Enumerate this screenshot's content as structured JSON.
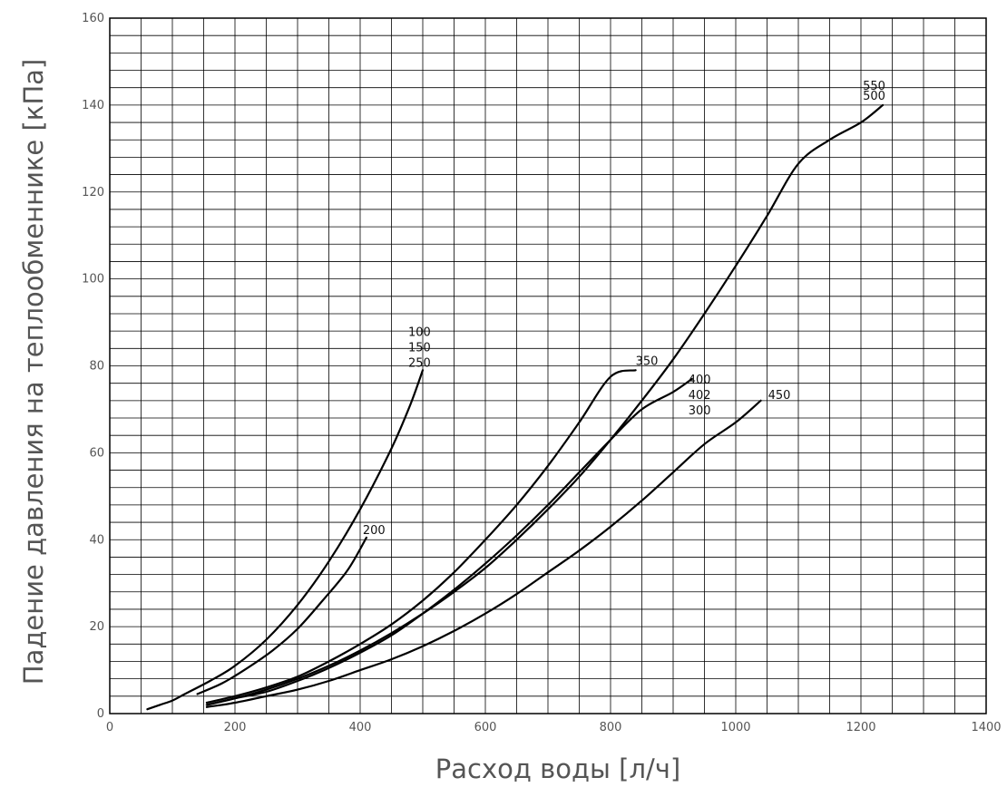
{
  "chart_data": {
    "type": "line",
    "xlabel": "Расход воды [л/ч]",
    "ylabel": "Падение давления на теплообменнике [кПа]",
    "xlim": [
      0,
      1400
    ],
    "ylim": [
      0,
      160
    ],
    "x_ticks": [
      "0",
      "200",
      "400",
      "600",
      "800",
      "1000",
      "1200",
      "1400"
    ],
    "y_ticks": [
      "0",
      "20",
      "40",
      "60",
      "80",
      "100",
      "120",
      "140",
      "160"
    ],
    "grid": true,
    "series": [
      {
        "name": "100 / 150 / 250",
        "labels": [
          "100",
          "150",
          "250"
        ],
        "points": [
          [
            60,
            1
          ],
          [
            80,
            2
          ],
          [
            100,
            3
          ],
          [
            120,
            4.5
          ],
          [
            160,
            7.5
          ],
          [
            200,
            11
          ],
          [
            250,
            17
          ],
          [
            300,
            25
          ],
          [
            350,
            35
          ],
          [
            400,
            47
          ],
          [
            450,
            61
          ],
          [
            480,
            71
          ],
          [
            500,
            79
          ]
        ]
      },
      {
        "name": "200",
        "labels": [
          "200"
        ],
        "points": [
          [
            140,
            4.5
          ],
          [
            180,
            7
          ],
          [
            220,
            10.5
          ],
          [
            260,
            14.5
          ],
          [
            300,
            19.5
          ],
          [
            340,
            26
          ],
          [
            380,
            33
          ],
          [
            410,
            40.5
          ]
        ]
      },
      {
        "name": "350",
        "labels": [
          "350"
        ],
        "points": [
          [
            155,
            2.5
          ],
          [
            200,
            4
          ],
          [
            250,
            6
          ],
          [
            300,
            8.5
          ],
          [
            350,
            12
          ],
          [
            400,
            16
          ],
          [
            450,
            20.5
          ],
          [
            500,
            26
          ],
          [
            550,
            32.5
          ],
          [
            600,
            40
          ],
          [
            650,
            48
          ],
          [
            700,
            57
          ],
          [
            750,
            67
          ],
          [
            800,
            77.5
          ],
          [
            840,
            79
          ]
        ]
      },
      {
        "name": "400 / 402 / 300",
        "labels": [
          "400",
          "402",
          "300"
        ],
        "points": [
          [
            155,
            2
          ],
          [
            200,
            3.5
          ],
          [
            250,
            5
          ],
          [
            300,
            7.5
          ],
          [
            350,
            10.5
          ],
          [
            400,
            14
          ],
          [
            450,
            18
          ],
          [
            500,
            23
          ],
          [
            550,
            28.5
          ],
          [
            600,
            34.5
          ],
          [
            650,
            41
          ],
          [
            700,
            48
          ],
          [
            750,
            55.5
          ],
          [
            800,
            63
          ],
          [
            850,
            70
          ],
          [
            900,
            74
          ],
          [
            930,
            77
          ]
        ]
      },
      {
        "name": "450",
        "labels": [
          "450"
        ],
        "points": [
          [
            155,
            1.5
          ],
          [
            200,
            2.5
          ],
          [
            250,
            4
          ],
          [
            300,
            5.5
          ],
          [
            350,
            7.5
          ],
          [
            400,
            10
          ],
          [
            450,
            12.5
          ],
          [
            500,
            15.5
          ],
          [
            550,
            19
          ],
          [
            600,
            23
          ],
          [
            650,
            27.5
          ],
          [
            700,
            32.5
          ],
          [
            750,
            37.5
          ],
          [
            800,
            43
          ],
          [
            850,
            49
          ],
          [
            900,
            55.5
          ],
          [
            950,
            62
          ],
          [
            1000,
            67
          ],
          [
            1040,
            72
          ]
        ]
      },
      {
        "name": "550 / 500",
        "labels": [
          "550",
          "500"
        ],
        "points": [
          [
            155,
            2
          ],
          [
            200,
            3.5
          ],
          [
            250,
            5.5
          ],
          [
            300,
            8
          ],
          [
            350,
            11
          ],
          [
            400,
            14.5
          ],
          [
            450,
            18.5
          ],
          [
            500,
            23
          ],
          [
            550,
            28
          ],
          [
            600,
            33.5
          ],
          [
            650,
            40
          ],
          [
            700,
            47
          ],
          [
            750,
            54.5
          ],
          [
            800,
            63
          ],
          [
            850,
            72
          ],
          [
            900,
            81.5
          ],
          [
            950,
            92
          ],
          [
            1000,
            103
          ],
          [
            1050,
            114.5
          ],
          [
            1100,
            126.5
          ],
          [
            1150,
            132
          ],
          [
            1200,
            136
          ],
          [
            1235,
            140
          ]
        ]
      }
    ]
  }
}
